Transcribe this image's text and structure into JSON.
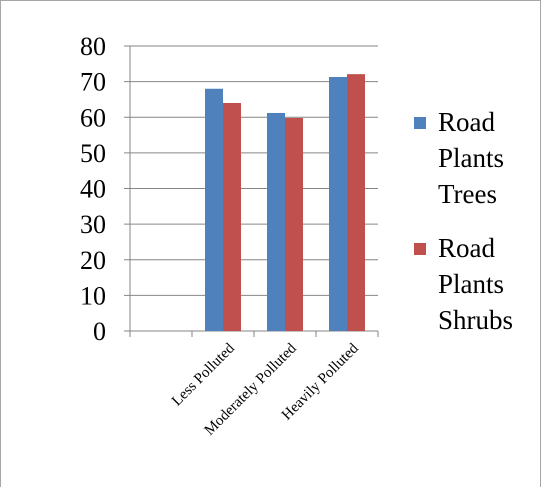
{
  "chart_data": {
    "type": "bar",
    "categories": [
      "Less Polluted",
      "Moderately Polluted",
      "Heavily  Polluted"
    ],
    "series": [
      {
        "name": "Road Plants Trees",
        "values": [
          68,
          61.2,
          71.3
        ],
        "color": "#4f81bd"
      },
      {
        "name": "Road Plants Shrubs",
        "values": [
          64,
          59.8,
          72.1
        ],
        "color": "#c0504d"
      }
    ],
    "legend_lines": [
      [
        "Road",
        "Plants",
        "Trees"
      ],
      [
        "Road",
        "Plants",
        "Shrubs"
      ]
    ],
    "legend_position": "right",
    "ylim": [
      0,
      80
    ],
    "yticks": [
      "0",
      "10",
      "20",
      "30",
      "40",
      "50",
      "60",
      "70",
      "80"
    ],
    "grid": true,
    "title": "",
    "xlabel": "",
    "ylabel": ""
  }
}
